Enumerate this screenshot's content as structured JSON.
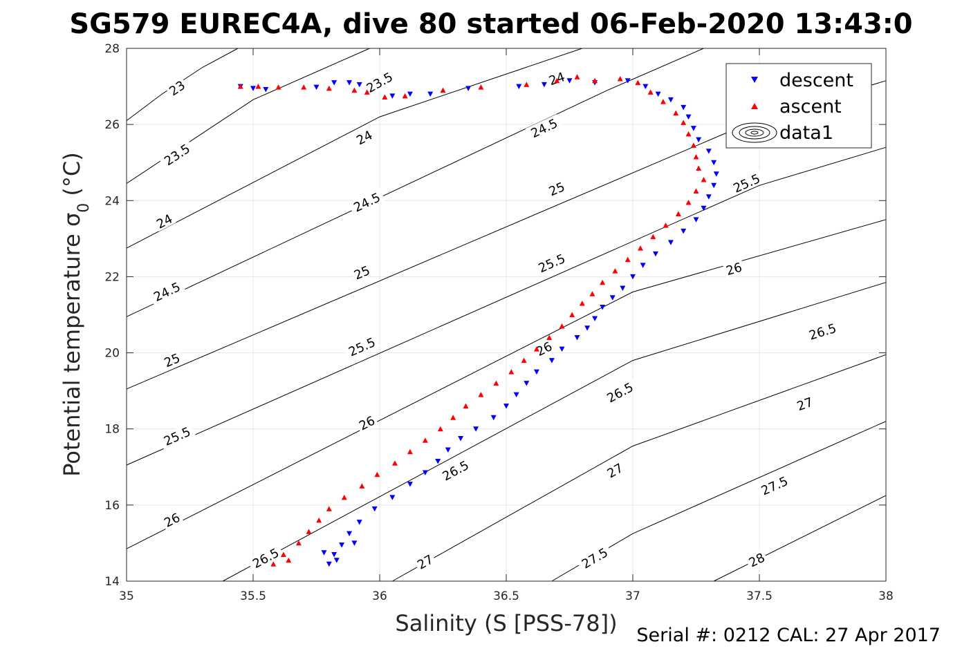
{
  "title": "SG579 EUREC4A, dive 80 started 06-Feb-2020 13:43:0",
  "footer": "Serial #: 0212  CAL: 27 Apr 2017",
  "chart_data": {
    "type": "scatter",
    "xlabel": "Salinity (S [PSS-78])",
    "ylabel": "Potential temperature σ",
    "ylabel_subscript": "0",
    "ylabel_unit": " (°C)",
    "xlim": [
      35,
      38
    ],
    "ylim": [
      14,
      28
    ],
    "xticks": [
      35,
      35.5,
      36,
      36.5,
      37,
      37.5,
      38
    ],
    "xtick_labels": [
      "35",
      "35.5",
      "36",
      "36.5",
      "37",
      "37.5",
      "38"
    ],
    "yticks": [
      14,
      16,
      18,
      20,
      22,
      24,
      26,
      28
    ],
    "ytick_labels": [
      "14",
      "16",
      "18",
      "20",
      "22",
      "24",
      "26",
      "28"
    ],
    "grid": true,
    "legend_position": "top-right",
    "legend": [
      "descent",
      "ascent",
      "data1"
    ],
    "colors": {
      "descent": "#0000ff",
      "ascent": "#ff0000",
      "contour": "#000000",
      "grid": "#e6e6e6"
    },
    "contours": [
      {
        "level": "23",
        "points": [
          [
            35,
            26.1
          ],
          [
            35.14,
            26.8
          ],
          [
            35.3,
            27.5
          ],
          [
            35.44,
            28
          ]
        ],
        "labels": [
          [
            35.2,
            26.95
          ]
        ]
      },
      {
        "level": "23.5",
        "points": [
          [
            35,
            24.45
          ],
          [
            35.5,
            26.65
          ],
          [
            35.96,
            28
          ]
        ],
        "labels": [
          [
            35.2,
            25.2
          ],
          [
            36.0,
            27.1
          ]
        ]
      },
      {
        "level": "24",
        "points": [
          [
            35,
            22.75
          ],
          [
            36,
            26.2
          ],
          [
            36.8,
            28
          ]
        ],
        "labels": [
          [
            35.15,
            23.45
          ],
          [
            35.94,
            25.65
          ],
          [
            36.7,
            27.2
          ]
        ]
      },
      {
        "level": "24.5",
        "points": [
          [
            35,
            20.95
          ],
          [
            36.9,
            26.9
          ],
          [
            37.28,
            28
          ]
        ],
        "labels": [
          [
            35.16,
            21.6
          ],
          [
            35.95,
            23.95
          ],
          [
            36.65,
            25.9
          ]
        ]
      },
      {
        "level": "25",
        "points": [
          [
            35,
            19.05
          ],
          [
            37.5,
            26.15
          ],
          [
            38,
            27.15
          ]
        ],
        "labels": [
          [
            35.18,
            19.8
          ],
          [
            35.93,
            22.1
          ],
          [
            36.7,
            24.3
          ]
        ]
      },
      {
        "level": "25.5",
        "points": [
          [
            35,
            17.05
          ],
          [
            37.5,
            24.4
          ],
          [
            38,
            25.4
          ]
        ],
        "labels": [
          [
            35.2,
            17.8
          ],
          [
            35.93,
            20.15
          ],
          [
            36.68,
            22.35
          ],
          [
            37.45,
            24.45
          ]
        ]
      },
      {
        "level": "26",
        "points": [
          [
            35,
            14.85
          ],
          [
            37,
            21.6
          ],
          [
            38,
            23.5
          ]
        ],
        "labels": [
          [
            35.18,
            15.6
          ],
          [
            35.95,
            18.15
          ],
          [
            36.65,
            20.1
          ],
          [
            37.4,
            22.2
          ]
        ]
      },
      {
        "level": "26.5",
        "points": [
          [
            35.38,
            14
          ],
          [
            37,
            19.8
          ],
          [
            38,
            21.85
          ]
        ],
        "labels": [
          [
            35.55,
            14.6
          ],
          [
            36.3,
            16.9
          ],
          [
            36.95,
            18.95
          ],
          [
            37.75,
            20.55
          ]
        ]
      },
      {
        "level": "27",
        "points": [
          [
            36.05,
            14
          ],
          [
            37,
            17.55
          ],
          [
            38,
            19.95
          ]
        ],
        "labels": [
          [
            36.18,
            14.5
          ],
          [
            36.93,
            16.9
          ],
          [
            37.68,
            18.65
          ]
        ]
      },
      {
        "level": "27.5",
        "points": [
          [
            36.68,
            14
          ],
          [
            37,
            15.25
          ],
          [
            38,
            18.2
          ]
        ],
        "labels": [
          [
            36.85,
            14.6
          ],
          [
            37.56,
            16.5
          ]
        ]
      },
      {
        "level": "28",
        "points": [
          [
            37.32,
            14
          ],
          [
            38,
            16.25
          ]
        ],
        "labels": [
          [
            37.49,
            14.55
          ]
        ]
      }
    ],
    "series": [
      {
        "name": "descent",
        "marker": "triangle-down",
        "points": [
          [
            35.45,
            27.0
          ],
          [
            35.5,
            26.95
          ],
          [
            35.55,
            26.92
          ],
          [
            35.75,
            26.98
          ],
          [
            35.82,
            27.1
          ],
          [
            35.88,
            27.1
          ],
          [
            35.92,
            27.05
          ],
          [
            36.05,
            26.75
          ],
          [
            36.12,
            26.8
          ],
          [
            36.2,
            26.8
          ],
          [
            36.35,
            26.95
          ],
          [
            36.55,
            27.0
          ],
          [
            36.65,
            27.05
          ],
          [
            36.75,
            27.15
          ],
          [
            36.85,
            27.1
          ],
          [
            36.98,
            27.15
          ],
          [
            37.05,
            27.0
          ],
          [
            37.1,
            26.8
          ],
          [
            37.15,
            26.65
          ],
          [
            37.2,
            26.45
          ],
          [
            37.22,
            26.2
          ],
          [
            37.24,
            25.9
          ],
          [
            37.26,
            25.6
          ],
          [
            37.3,
            25.3
          ],
          [
            37.32,
            25.0
          ],
          [
            37.33,
            24.7
          ],
          [
            37.32,
            24.4
          ],
          [
            37.3,
            24.1
          ],
          [
            37.28,
            23.8
          ],
          [
            37.25,
            23.5
          ],
          [
            37.2,
            23.2
          ],
          [
            37.15,
            22.9
          ],
          [
            37.09,
            22.6
          ],
          [
            37.04,
            22.3
          ],
          [
            37.0,
            22.0
          ],
          [
            36.96,
            21.7
          ],
          [
            36.92,
            21.45
          ],
          [
            36.88,
            21.2
          ],
          [
            36.85,
            20.9
          ],
          [
            36.82,
            20.65
          ],
          [
            36.78,
            20.4
          ],
          [
            36.72,
            20.1
          ],
          [
            36.68,
            19.8
          ],
          [
            36.62,
            19.5
          ],
          [
            36.58,
            19.2
          ],
          [
            36.54,
            18.9
          ],
          [
            36.5,
            18.6
          ],
          [
            36.45,
            18.3
          ],
          [
            36.38,
            18.0
          ],
          [
            36.32,
            17.75
          ],
          [
            36.27,
            17.45
          ],
          [
            36.23,
            17.15
          ],
          [
            36.18,
            16.85
          ],
          [
            36.12,
            16.55
          ],
          [
            36.05,
            16.2
          ],
          [
            35.98,
            15.9
          ],
          [
            35.92,
            15.55
          ],
          [
            35.88,
            15.25
          ],
          [
            35.85,
            14.95
          ],
          [
            35.82,
            14.7
          ],
          [
            35.8,
            14.45
          ],
          [
            35.83,
            14.55
          ],
          [
            35.78,
            14.75
          ],
          [
            35.9,
            15.0
          ]
        ]
      },
      {
        "name": "ascent",
        "marker": "triangle-up",
        "points": [
          [
            35.45,
            27.0
          ],
          [
            35.52,
            27.0
          ],
          [
            35.6,
            26.98
          ],
          [
            35.7,
            26.98
          ],
          [
            35.8,
            26.95
          ],
          [
            35.9,
            26.9
          ],
          [
            35.95,
            26.85
          ],
          [
            36.02,
            26.72
          ],
          [
            36.1,
            26.75
          ],
          [
            36.25,
            26.9
          ],
          [
            36.4,
            26.98
          ],
          [
            36.58,
            27.05
          ],
          [
            36.7,
            27.15
          ],
          [
            36.78,
            27.25
          ],
          [
            36.85,
            27.15
          ],
          [
            36.95,
            27.2
          ],
          [
            37.02,
            27.1
          ],
          [
            37.07,
            26.85
          ],
          [
            37.12,
            26.6
          ],
          [
            37.17,
            26.3
          ],
          [
            37.2,
            26.05
          ],
          [
            37.22,
            25.75
          ],
          [
            37.24,
            25.45
          ],
          [
            37.25,
            25.15
          ],
          [
            37.26,
            24.85
          ],
          [
            37.28,
            24.55
          ],
          [
            37.25,
            24.25
          ],
          [
            37.22,
            23.95
          ],
          [
            37.18,
            23.65
          ],
          [
            37.13,
            23.35
          ],
          [
            37.08,
            23.05
          ],
          [
            37.03,
            22.75
          ],
          [
            36.98,
            22.45
          ],
          [
            36.93,
            22.15
          ],
          [
            36.88,
            21.85
          ],
          [
            36.84,
            21.55
          ],
          [
            36.8,
            21.3
          ],
          [
            36.76,
            21.0
          ],
          [
            36.72,
            20.7
          ],
          [
            36.67,
            20.4
          ],
          [
            36.62,
            20.1
          ],
          [
            36.57,
            19.8
          ],
          [
            36.52,
            19.5
          ],
          [
            36.46,
            19.2
          ],
          [
            36.4,
            18.9
          ],
          [
            36.34,
            18.6
          ],
          [
            36.29,
            18.3
          ],
          [
            36.24,
            18.0
          ],
          [
            36.18,
            17.7
          ],
          [
            36.12,
            17.4
          ],
          [
            36.06,
            17.1
          ],
          [
            35.99,
            16.8
          ],
          [
            35.93,
            16.5
          ],
          [
            35.86,
            16.2
          ],
          [
            35.8,
            15.9
          ],
          [
            35.76,
            15.6
          ],
          [
            35.72,
            15.3
          ],
          [
            35.68,
            15.0
          ],
          [
            35.62,
            14.7
          ],
          [
            35.58,
            14.45
          ],
          [
            35.64,
            14.55
          ]
        ]
      }
    ]
  }
}
